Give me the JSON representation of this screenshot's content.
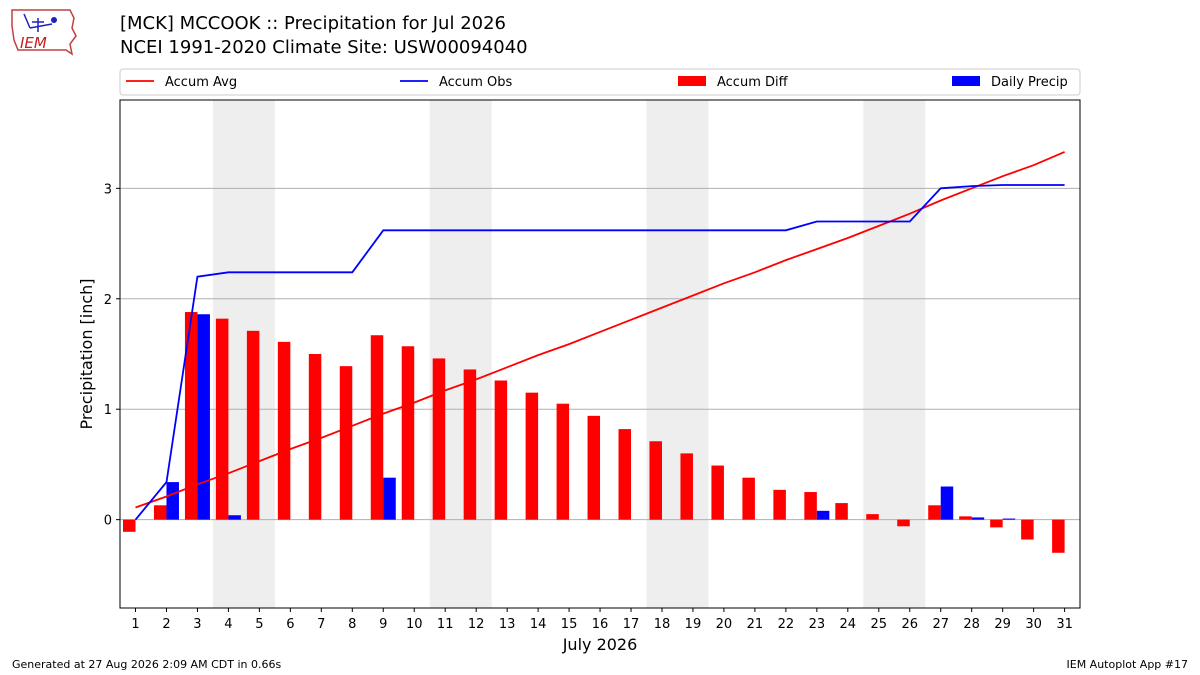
{
  "header": {
    "title_line1": "[MCK] MCCOOK :: Precipitation for Jul 2026",
    "title_line2": "NCEI 1991-2020 Climate Site: USW00094040",
    "logo_text": "IEM"
  },
  "footer": {
    "left": "Generated at 27 Aug 2026 2:09 AM CDT in 0.66s",
    "right": "IEM Autoplot App #17"
  },
  "colors": {
    "accum_avg": "#ff0000",
    "accum_obs": "#0000ff",
    "accum_diff": "#ff0000",
    "daily_precip": "#0000ff",
    "weekend_shade": "#eeeeee",
    "grid": "#b0b0b0"
  },
  "chart_data": {
    "type": "bar",
    "xlabel": "July 2026",
    "ylabel": "Precipitation [inch]",
    "ylim": [
      -0.8,
      3.8
    ],
    "yticks": [
      0,
      1,
      2,
      3
    ],
    "grid": "horizontal",
    "legend_placement": "top",
    "categories": [
      "1",
      "2",
      "3",
      "4",
      "5",
      "6",
      "7",
      "8",
      "9",
      "10",
      "11",
      "12",
      "13",
      "14",
      "15",
      "16",
      "17",
      "18",
      "19",
      "20",
      "21",
      "22",
      "23",
      "24",
      "25",
      "26",
      "27",
      "28",
      "29",
      "30",
      "31"
    ],
    "weekend_spans": [
      [
        4,
        5
      ],
      [
        11,
        12
      ],
      [
        18,
        19
      ],
      [
        25,
        26
      ]
    ],
    "series": [
      {
        "name": "Accum Avg",
        "kind": "line",
        "values": [
          0.11,
          0.21,
          0.32,
          0.42,
          0.53,
          0.64,
          0.74,
          0.85,
          0.96,
          1.06,
          1.17,
          1.27,
          1.38,
          1.49,
          1.59,
          1.7,
          1.81,
          1.92,
          2.03,
          2.14,
          2.24,
          2.35,
          2.45,
          2.55,
          2.66,
          2.77,
          2.89,
          3.0,
          3.11,
          3.21,
          3.33
        ]
      },
      {
        "name": "Accum Obs",
        "kind": "line",
        "values": [
          0.0,
          0.34,
          2.2,
          2.24,
          2.24,
          2.24,
          2.24,
          2.24,
          2.62,
          2.62,
          2.62,
          2.62,
          2.62,
          2.62,
          2.62,
          2.62,
          2.62,
          2.62,
          2.62,
          2.62,
          2.62,
          2.62,
          2.7,
          2.7,
          2.7,
          2.7,
          3.0,
          3.02,
          3.03,
          3.03,
          3.03
        ]
      },
      {
        "name": "Accum Diff",
        "kind": "bar",
        "values": [
          -0.11,
          0.13,
          1.88,
          1.82,
          1.71,
          1.61,
          1.5,
          1.39,
          1.67,
          1.57,
          1.46,
          1.36,
          1.26,
          1.15,
          1.05,
          0.94,
          0.82,
          0.71,
          0.6,
          0.49,
          0.38,
          0.27,
          0.25,
          0.15,
          0.05,
          -0.06,
          0.13,
          0.03,
          -0.07,
          -0.18,
          -0.3
        ]
      },
      {
        "name": "Daily Precip",
        "kind": "bar",
        "values": [
          0.0,
          0.34,
          1.86,
          0.04,
          0.0,
          0.0,
          0.0,
          0.0,
          0.38,
          0.0,
          0.0,
          0.0,
          0.0,
          0.0,
          0.0,
          0.0,
          0.0,
          0.0,
          0.0,
          0.0,
          0.0,
          0.0,
          0.08,
          0.0,
          0.0,
          0.0,
          0.3,
          0.02,
          0.01,
          0.0,
          0.0
        ]
      }
    ]
  }
}
